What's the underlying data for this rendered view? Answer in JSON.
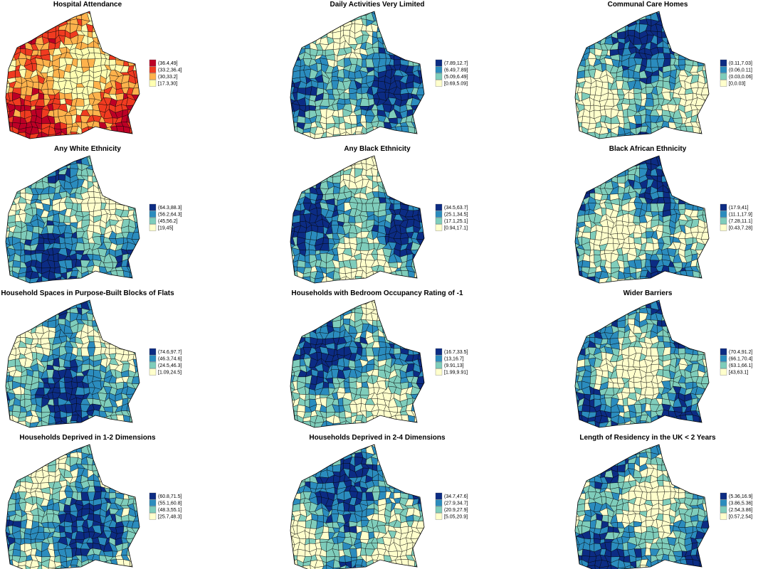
{
  "palettes": {
    "red": [
      "#bd0026",
      "#f03b20",
      "#feb24c",
      "#ffffb2"
    ],
    "blue": [
      "#0c2c84",
      "#2b8cbe",
      "#7fcdbb",
      "#ffffcc"
    ]
  },
  "panels": [
    {
      "title": "Hospital Attendance",
      "palette": "red",
      "legend": [
        "(36.4,49]",
        "(33.2,36.4]",
        "(30,33.2]",
        "[17.3,30]"
      ]
    },
    {
      "title": "Daily Activities Very Limited",
      "palette": "blue",
      "legend": [
        "(7.89,12.7]",
        "(6.49,7.89]",
        "(5.09,6.49]",
        "[0.69,5.09]"
      ]
    },
    {
      "title": "Communal Care Homes",
      "palette": "blue",
      "legend": [
        "(0.11,7.03]",
        "(0.06,0.11]",
        "(0.03,0.06]",
        "[0,0.03]"
      ]
    },
    {
      "title": "Any White Ethnicity",
      "palette": "blue",
      "legend": [
        "(64.3,88.3]",
        "(56.2,64.3]",
        "(45,56.2]",
        "[19,45]"
      ]
    },
    {
      "title": "Any Black Ethnicity",
      "palette": "blue",
      "legend": [
        "(34.5,63.7]",
        "(25.1,34.5]",
        "(17.1,25.1]",
        "[0.94,17.1]"
      ]
    },
    {
      "title": "Black African Ethnicity",
      "palette": "blue",
      "legend": [
        "(17.9,41]",
        "(11.1,17.9]",
        "(7.28,11.1]",
        "[0.43,7.28]"
      ]
    },
    {
      "title": "Household Spaces in Purpose-Built Blocks of Flats",
      "palette": "blue",
      "legend": [
        "(74.6,97.7]",
        "(46.3,74.6]",
        "(24.5,46.3]",
        "[1.09,24.5]"
      ]
    },
    {
      "title": "Households with Bedroom Occupancy Rating of -1",
      "palette": "blue",
      "legend": [
        "(16.7,33.5]",
        "(13,16.7]",
        "(9.91,13]",
        "[1.99,9.91]"
      ]
    },
    {
      "title": "Wider Barriers",
      "palette": "blue",
      "legend": [
        "(70.4,91.2]",
        "(66.1,70.4]",
        "(63.1,66.1]",
        "[43,63.1]"
      ]
    },
    {
      "title": "Households Deprived in 1-2 Dimensions",
      "palette": "blue",
      "legend": [
        "(60.8,71.5]",
        "(55.1,60.8]",
        "(48.3,55.1]",
        "[25.7,48.3]"
      ]
    },
    {
      "title": "Households Deprived in 2-4 Dimensions",
      "palette": "blue",
      "legend": [
        "(34.7,47.6]",
        "(27.9,34.7]",
        "(20.9,27.9]",
        "[5.05,20.9]"
      ]
    },
    {
      "title": "Length of Residency in the UK < 2 Years",
      "palette": "blue",
      "legend": [
        "(5.36,16.9]",
        "(3.86,5.36]",
        "(2.54,3.86]",
        "[0.57,2.54]"
      ]
    }
  ]
}
